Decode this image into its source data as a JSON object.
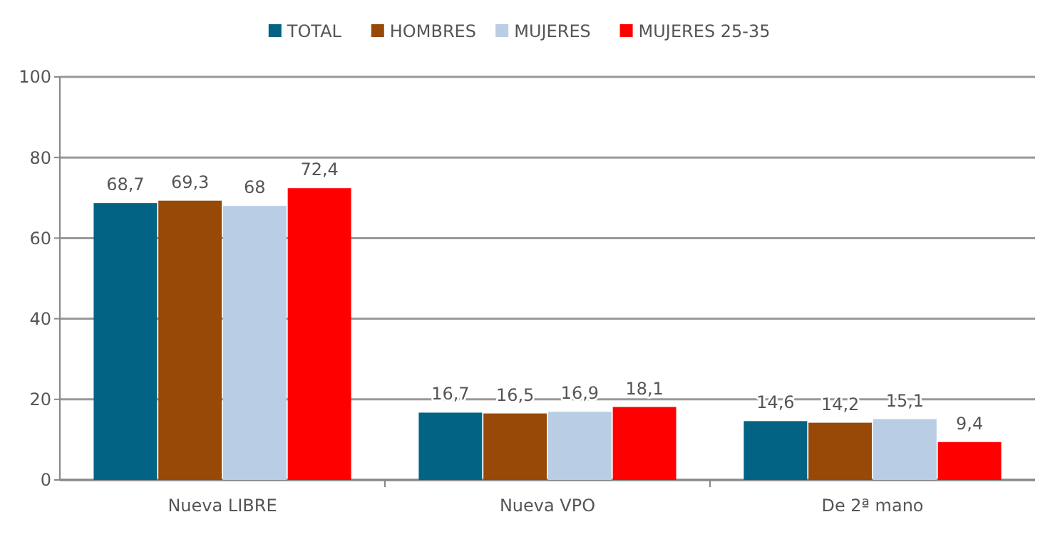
{
  "chart_data": {
    "type": "bar",
    "categories": [
      "Nueva LIBRE",
      "Nueva VPO",
      "De 2ª mano"
    ],
    "series": [
      {
        "name": "TOTAL",
        "color": "#036384",
        "values": [
          68.7,
          16.7,
          14.6
        ],
        "value_labels": [
          "68,7",
          "16,7",
          "14,6"
        ]
      },
      {
        "name": "HOMBRES",
        "color": "#984807",
        "values": [
          69.3,
          16.5,
          14.2
        ],
        "value_labels": [
          "69,3",
          "16,5",
          "14,2"
        ]
      },
      {
        "name": "MUJERES",
        "color": "#b9cde5",
        "values": [
          68,
          16.9,
          15.1
        ],
        "value_labels": [
          "68",
          "16,9",
          "15,1"
        ]
      },
      {
        "name": "MUJERES 25-35",
        "color": "#ff0000",
        "values": [
          72.4,
          18.1,
          9.4
        ],
        "value_labels": [
          "72,4",
          "18,1",
          "9,4"
        ]
      }
    ],
    "ylim": [
      0,
      100
    ],
    "yticks": [
      0,
      20,
      40,
      60,
      80,
      100
    ],
    "grid": "y",
    "legend": "top"
  }
}
